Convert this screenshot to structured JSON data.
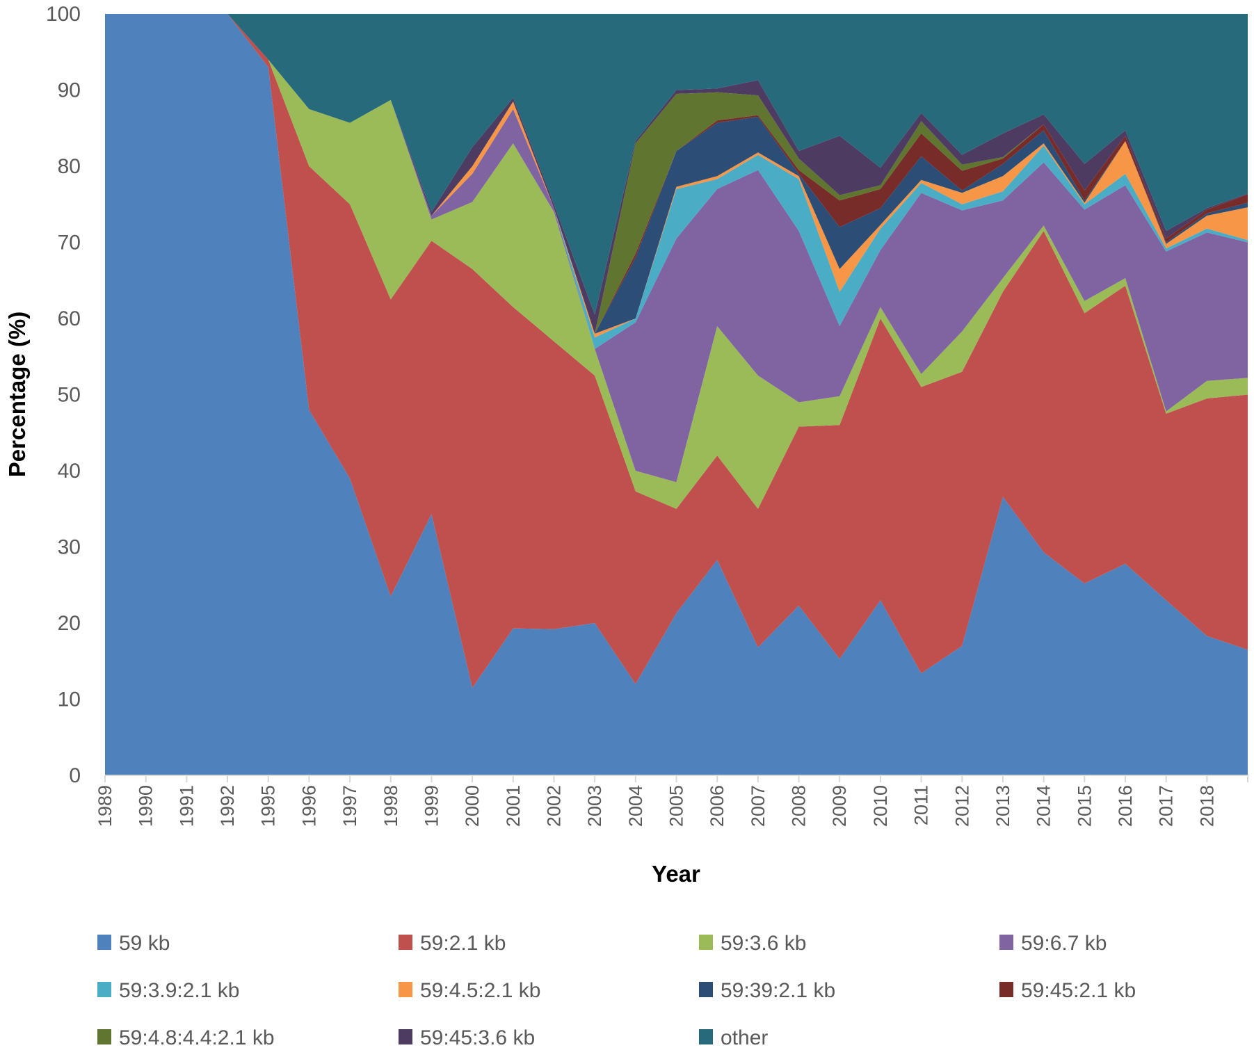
{
  "chart_data": {
    "type": "area",
    "stacked": true,
    "title": "",
    "xlabel": "Year",
    "ylabel": "Percentage (%)",
    "ylim": [
      0,
      100
    ],
    "yticks": [
      0,
      10,
      20,
      30,
      40,
      50,
      60,
      70,
      80,
      90,
      100
    ],
    "grid": false,
    "legend_position": "bottom",
    "categories": [
      "1989",
      "1990",
      "1991",
      "1992",
      "1995",
      "1996",
      "1997",
      "1998",
      "1999",
      "2000",
      "2001",
      "2002",
      "2003",
      "2004",
      "2005",
      "2006",
      "2007",
      "2008",
      "2009",
      "2010",
      "2011",
      "2012",
      "2013",
      "2014",
      "2015",
      "2016",
      "2017",
      "2018",
      ""
    ],
    "series": [
      {
        "name": "59 kb",
        "color": "#4F81BD",
        "values": [
          100,
          100,
          100,
          100,
          93,
          48,
          39,
          23.5,
          34.3,
          11.5,
          19.3,
          19.2,
          20,
          12,
          21.3,
          28.3,
          16.8,
          22.3,
          15.3,
          23,
          13.4,
          17,
          36.6,
          29.3,
          25.2,
          27.8,
          23,
          18.3,
          16.5
        ]
      },
      {
        "name": "59:2.1 kb",
        "color": "#C0504D",
        "values": [
          0,
          0,
          0,
          0,
          1,
          32,
          36,
          39,
          35.9,
          55,
          42.2,
          37.8,
          32.5,
          25.3,
          13.7,
          13.7,
          18.2,
          23.5,
          30.7,
          37,
          37.6,
          36,
          26.9,
          42.2,
          35.5,
          36.5,
          24.5,
          31.2,
          33.5
        ]
      },
      {
        "name": "59:3.6 kb",
        "color": "#9BBB59",
        "values": [
          0,
          0,
          0,
          0,
          0,
          7.5,
          10.7,
          26.2,
          2.8,
          8.8,
          21.5,
          17,
          3.5,
          2.7,
          3.5,
          17,
          17.5,
          3.2,
          3.8,
          1.5,
          1.7,
          5.3,
          1.8,
          0.7,
          1.6,
          1,
          0.3,
          2.3,
          2.2
        ]
      },
      {
        "name": "59:6.7 kb",
        "color": "#8064A2",
        "values": [
          0,
          0,
          0,
          0,
          0,
          0,
          0,
          0,
          0.5,
          3.7,
          4.5,
          0.5,
          0,
          19.5,
          32,
          18,
          27,
          22.5,
          9.2,
          7.5,
          23.8,
          15.9,
          10.2,
          8.3,
          12,
          12.2,
          21,
          19.5,
          17.8
        ]
      },
      {
        "name": "59:3.9:2.1 kb",
        "color": "#4BACC6",
        "values": [
          0,
          0,
          0,
          0,
          0,
          0,
          0,
          0,
          0,
          0,
          0,
          0,
          1.5,
          0.5,
          6.5,
          1.3,
          2,
          6.8,
          4.5,
          2.8,
          1.3,
          0.8,
          1.2,
          2.2,
          0.7,
          1.5,
          0.4,
          0.5,
          0.3
        ]
      },
      {
        "name": "59:4.5:2.1 kb",
        "color": "#F79646",
        "values": [
          0,
          0,
          0,
          0,
          0,
          0,
          0,
          0,
          0,
          1,
          1,
          0,
          0.5,
          0,
          0.3,
          0.4,
          0.3,
          0.4,
          3,
          0.5,
          0.4,
          1.5,
          2,
          0.3,
          0.2,
          4.3,
          0.6,
          1.7,
          4.3
        ]
      },
      {
        "name": "59:39:2.1 kb",
        "color": "#2C4D75",
        "values": [
          0,
          0,
          0,
          0,
          0,
          0,
          0,
          0,
          0,
          0,
          0,
          0,
          0,
          8,
          4.7,
          7,
          4.7,
          0.3,
          5.5,
          2.2,
          3.1,
          0.3,
          1.6,
          1.7,
          0.3,
          0,
          0.2,
          0.3,
          0.6
        ]
      },
      {
        "name": "59:45:2.1 kb",
        "color": "#772C2A",
        "values": [
          0,
          0,
          0,
          0,
          0,
          0,
          0,
          0,
          0,
          0,
          0,
          0,
          0,
          0.5,
          0,
          0.3,
          0.2,
          0.5,
          3.5,
          2.5,
          3,
          2.6,
          0.7,
          0.8,
          1.3,
          0.7,
          0.5,
          0.5,
          1.1
        ]
      },
      {
        "name": "59:4.8:4.4:2.1 kb",
        "color": "#5F7530",
        "values": [
          0,
          0,
          0,
          0,
          0,
          0,
          0,
          0,
          0,
          0,
          0,
          0,
          0,
          14.5,
          7.5,
          3.7,
          2.6,
          1.5,
          0.7,
          0.5,
          1.6,
          0.8,
          0.2,
          0,
          0,
          0,
          0,
          0,
          0
        ]
      },
      {
        "name": "59:45:3.6 kb",
        "color": "#4D3B62",
        "values": [
          0,
          0,
          0,
          0,
          0,
          0,
          0,
          0,
          0.5,
          2.5,
          0.5,
          0.5,
          2.5,
          0.3,
          0.5,
          0.5,
          2,
          1,
          7.8,
          2.3,
          1.1,
          1.3,
          3.1,
          1.3,
          3.5,
          0.7,
          1,
          0.2,
          0.1
        ]
      },
      {
        "name": "other",
        "color": "#276A7C",
        "values": [
          0,
          0,
          0,
          0,
          6,
          12.5,
          14.3,
          11.3,
          26,
          17.5,
          11,
          25,
          39.5,
          16.7,
          10,
          9.8,
          8.7,
          18,
          16,
          20.2,
          13,
          18.5,
          15.7,
          13.2,
          19.7,
          15.3,
          28.5,
          25.5,
          23.6
        ]
      }
    ]
  }
}
